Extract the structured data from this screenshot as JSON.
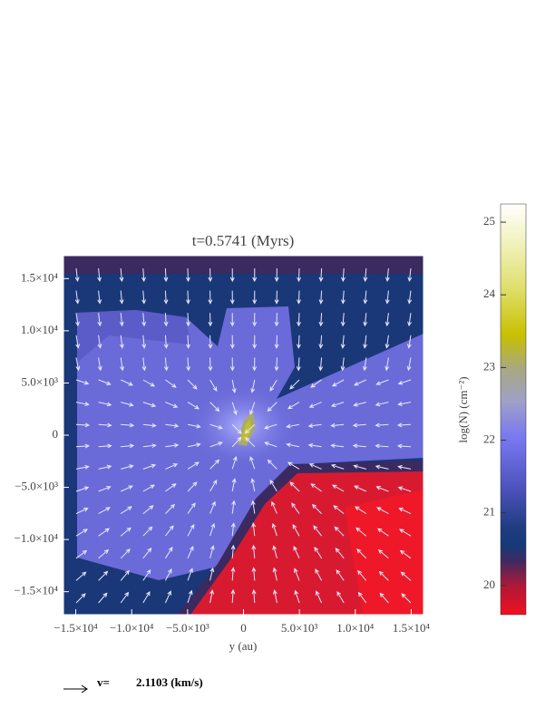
{
  "chart_data": {
    "type": "heatmap",
    "title": "t=0.5741 (Myrs)",
    "xlabel": "y (au)",
    "xlim": [
      -16100,
      16100
    ],
    "ylim": [
      -17200,
      17200
    ],
    "xticks": [
      {
        "value": -15000,
        "label": "−1.5×10⁴"
      },
      {
        "value": -10000,
        "label": "−1.0×10⁴"
      },
      {
        "value": -5000,
        "label": "−5.0×10³"
      },
      0,
      {
        "value": 5000,
        "label": "5.0×10³"
      },
      {
        "value": 10000,
        "label": "1.0×10⁴"
      },
      {
        "value": 15000,
        "label": "1.5×10⁴"
      }
    ],
    "yticks": [
      {
        "value": 15000,
        "label": "1.5×10⁴"
      },
      {
        "value": 10000,
        "label": "1.0×10⁴"
      },
      {
        "value": 5000,
        "label": "5.0×10³"
      },
      0,
      {
        "value": -5000,
        "label": "−5.0×10³"
      },
      {
        "value": -10000,
        "label": "−1.0×10⁴"
      },
      {
        "value": -15000,
        "label": "−1.5×10⁴"
      }
    ],
    "colorbar": {
      "label": "log(N) (cm⁻²)",
      "lim": [
        19.6,
        25.25
      ],
      "ticks": [
        20,
        21,
        22,
        23,
        24,
        25
      ]
    },
    "legend": {
      "symbol_label": "v=",
      "value_label": "2.1103 (km/s)"
    }
  }
}
